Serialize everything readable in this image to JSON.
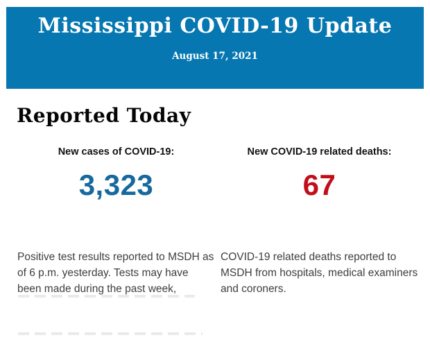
{
  "banner": {
    "title": "Mississippi COVID-19 Update",
    "date": "August 17, 2021",
    "background_color": "#0677b0",
    "text_color": "#ffffff"
  },
  "report": {
    "heading": "Reported Today",
    "stats": [
      {
        "label": "New cases of COVID-19:",
        "value": "3,323",
        "value_color": "#17699d",
        "description": "Positive test results reported to MSDH as of 6 p.m. yesterday. Tests may have been made during the past week,"
      },
      {
        "label": "New COVID-19 related deaths:",
        "value": "67",
        "value_color": "#c20e1a",
        "description": "COVID-19 related deaths reported to MSDH from hospitals, medical examiners and coroners."
      }
    ]
  }
}
